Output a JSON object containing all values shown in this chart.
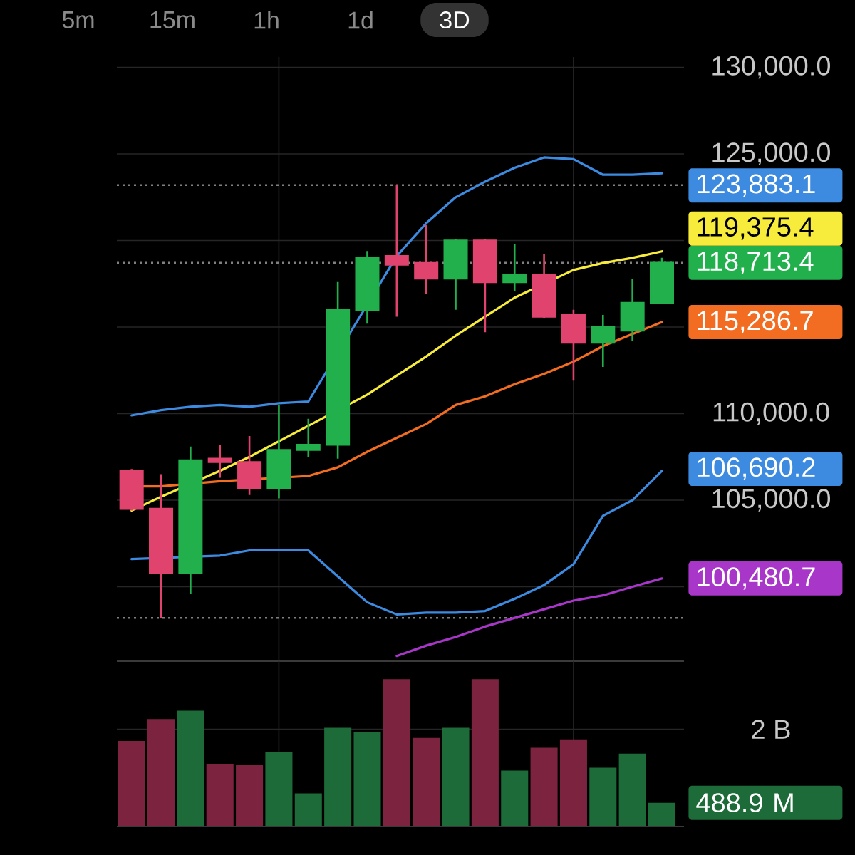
{
  "chart_data": [
    {
      "type": "candlestick",
      "annotations": [
        "5m",
        "15m",
        "1h",
        "1d",
        "3D"
      ],
      "categories": [
        null,
        null,
        null,
        null,
        null,
        null,
        null,
        null,
        null,
        null,
        null,
        null,
        null,
        null,
        null,
        null,
        null,
        null,
        null
      ],
      "ohlc": [
        [
          106700,
          106800,
          104400,
          104500
        ],
        [
          104500,
          106500,
          98200,
          100800
        ],
        [
          100800,
          108100,
          99600,
          107300
        ],
        [
          107400,
          108200,
          106300,
          107200
        ],
        [
          107200,
          108700,
          105300,
          105700
        ],
        [
          105700,
          110500,
          105100,
          107900
        ],
        [
          107900,
          109700,
          107500,
          108200
        ],
        [
          108200,
          117600,
          107400,
          116000
        ],
        [
          116000,
          119400,
          115200,
          119000
        ],
        [
          119100,
          123200,
          115600,
          118600
        ],
        [
          118700,
          120900,
          116900,
          117800
        ],
        [
          117800,
          120100,
          116000,
          120000
        ],
        [
          120000,
          120100,
          114700,
          117600
        ],
        [
          117600,
          119800,
          117100,
          118000
        ],
        [
          118000,
          119200,
          115500,
          115600
        ],
        [
          115700,
          116000,
          111900,
          114100
        ],
        [
          114100,
          115700,
          112700,
          115000
        ],
        [
          114800,
          117800,
          114200,
          116400
        ],
        [
          116400,
          119000,
          116400,
          118713.4
        ]
      ],
      "colors": [
        "#e0446e",
        "#e0446e",
        "#22b04c",
        "#e0446e",
        "#e0446e",
        "#22b04c",
        "#22b04c",
        "#22b04c",
        "#22b04c",
        "#e0446e",
        "#e0446e",
        "#22b04c",
        "#e0446e",
        "#22b04c",
        "#e0446e",
        "#e0446e",
        "#22b04c",
        "#22b04c",
        "#22b04c"
      ],
      "ylim": [
        95700,
        130600
      ],
      "yticks": [
        {
          "value": 130000,
          "label": "130,000.0"
        },
        {
          "value": 125000,
          "label": "125,000.0"
        },
        {
          "value": 120000,
          "label": null
        },
        {
          "value": 115000,
          "label": null
        },
        {
          "value": 110000,
          "label": "110,000.0"
        },
        {
          "value": 105000,
          "label": "105,000.0"
        },
        {
          "value": 100000,
          "label": null
        }
      ],
      "grid": true,
      "series": [
        {
          "type": "line",
          "color": "#3d8be0",
          "values": [
            109900,
            110200,
            110400,
            110500,
            110400,
            110600,
            110700,
            null,
            null,
            119100,
            121000,
            122500,
            123400,
            124200,
            124800,
            124700,
            123800,
            123800,
            123883.1
          ],
          "value_labels": [
            null,
            null,
            null,
            null,
            null,
            null,
            null,
            null,
            null,
            null,
            null,
            null,
            null,
            null,
            null,
            null,
            null,
            null,
            "123,883.1"
          ]
        },
        {
          "type": "line",
          "color": "#f26d21",
          "values": [
            105800,
            105800,
            null,
            106100,
            null,
            null,
            106400,
            106900,
            107800,
            108600,
            109400,
            110500,
            111000,
            111700,
            112300,
            113000,
            113900,
            114600,
            115286.7
          ],
          "value_labels": [
            null,
            null,
            null,
            null,
            null,
            null,
            null,
            null,
            null,
            null,
            null,
            null,
            null,
            null,
            null,
            null,
            null,
            null,
            "115,286.7"
          ]
        },
        {
          "type": "line",
          "color": "#3d8be0",
          "values": [
            101600,
            null,
            null,
            101800,
            102100,
            102100,
            102100,
            100600,
            99100,
            98400,
            98500,
            98500,
            98600,
            99300,
            100100,
            101300,
            104100,
            105000,
            106690.2
          ],
          "value_labels": [
            null,
            null,
            null,
            null,
            null,
            null,
            null,
            null,
            null,
            null,
            null,
            null,
            null,
            null,
            null,
            null,
            null,
            null,
            "106,690.2"
          ]
        },
        {
          "type": "line",
          "color": "#f7eb3c",
          "values": [
            104400,
            105200,
            null,
            106700,
            107500,
            108400,
            109300,
            null,
            111100,
            112200,
            113300,
            114500,
            115600,
            116700,
            null,
            118300,
            118700,
            119000,
            119375.4
          ],
          "value_labels": [
            null,
            null,
            null,
            null,
            null,
            null,
            null,
            null,
            null,
            null,
            null,
            null,
            null,
            null,
            null,
            null,
            null,
            null,
            "119,375.4"
          ]
        },
        {
          "type": "line",
          "color": "#a836c8",
          "values": [
            null,
            null,
            null,
            null,
            null,
            null,
            null,
            null,
            null,
            96000,
            96600,
            97100,
            97700,
            98200,
            98700,
            99200,
            99500,
            100000,
            100480.7
          ],
          "value_labels": [
            null,
            null,
            null,
            null,
            null,
            null,
            null,
            null,
            null,
            null,
            null,
            null,
            null,
            null,
            null,
            null,
            null,
            null,
            "100,480.7"
          ]
        }
      ],
      "ref_lines": [
        {
          "axis": "y",
          "value": 123200,
          "color": "#808080",
          "line_style": "dotted"
        },
        {
          "axis": "y",
          "value": 118713.4,
          "label": "118,713.4",
          "color": "#808080",
          "line_style": "dotted"
        },
        {
          "axis": "y",
          "value": 98200,
          "color": "#808080",
          "line_style": "dotted"
        }
      ]
    },
    {
      "type": "bar",
      "categories": [
        null,
        null,
        null,
        null,
        null,
        null,
        null,
        null,
        null,
        null,
        null,
        null,
        null,
        null,
        null,
        null,
        null,
        null,
        null
      ],
      "values": [
        1760000000,
        2210000000,
        2380000000,
        1290000000,
        1260000000,
        1530000000,
        680000000,
        2030000000,
        1940000000,
        3030000000,
        1820000000,
        2030000000,
        3030000000,
        1150000000,
        1620000000,
        1790000000,
        1210000000,
        1500000000,
        488900000
      ],
      "colors": [
        "#7c2340",
        "#7c2340",
        "#1d6b38",
        "#7c2340",
        "#7c2340",
        "#1d6b38",
        "#1d6b38",
        "#1d6b38",
        "#1d6b38",
        "#7c2340",
        "#7c2340",
        "#1d6b38",
        "#7c2340",
        "#1d6b38",
        "#7c2340",
        "#7c2340",
        "#1d6b38",
        "#1d6b38",
        "#1d6b38"
      ],
      "annotations": [
        "488.9 M"
      ],
      "ylim": [
        0,
        3400000000
      ],
      "yticks": [
        {
          "value": 2000000000,
          "label": "2 B"
        }
      ],
      "grid": true
    }
  ]
}
